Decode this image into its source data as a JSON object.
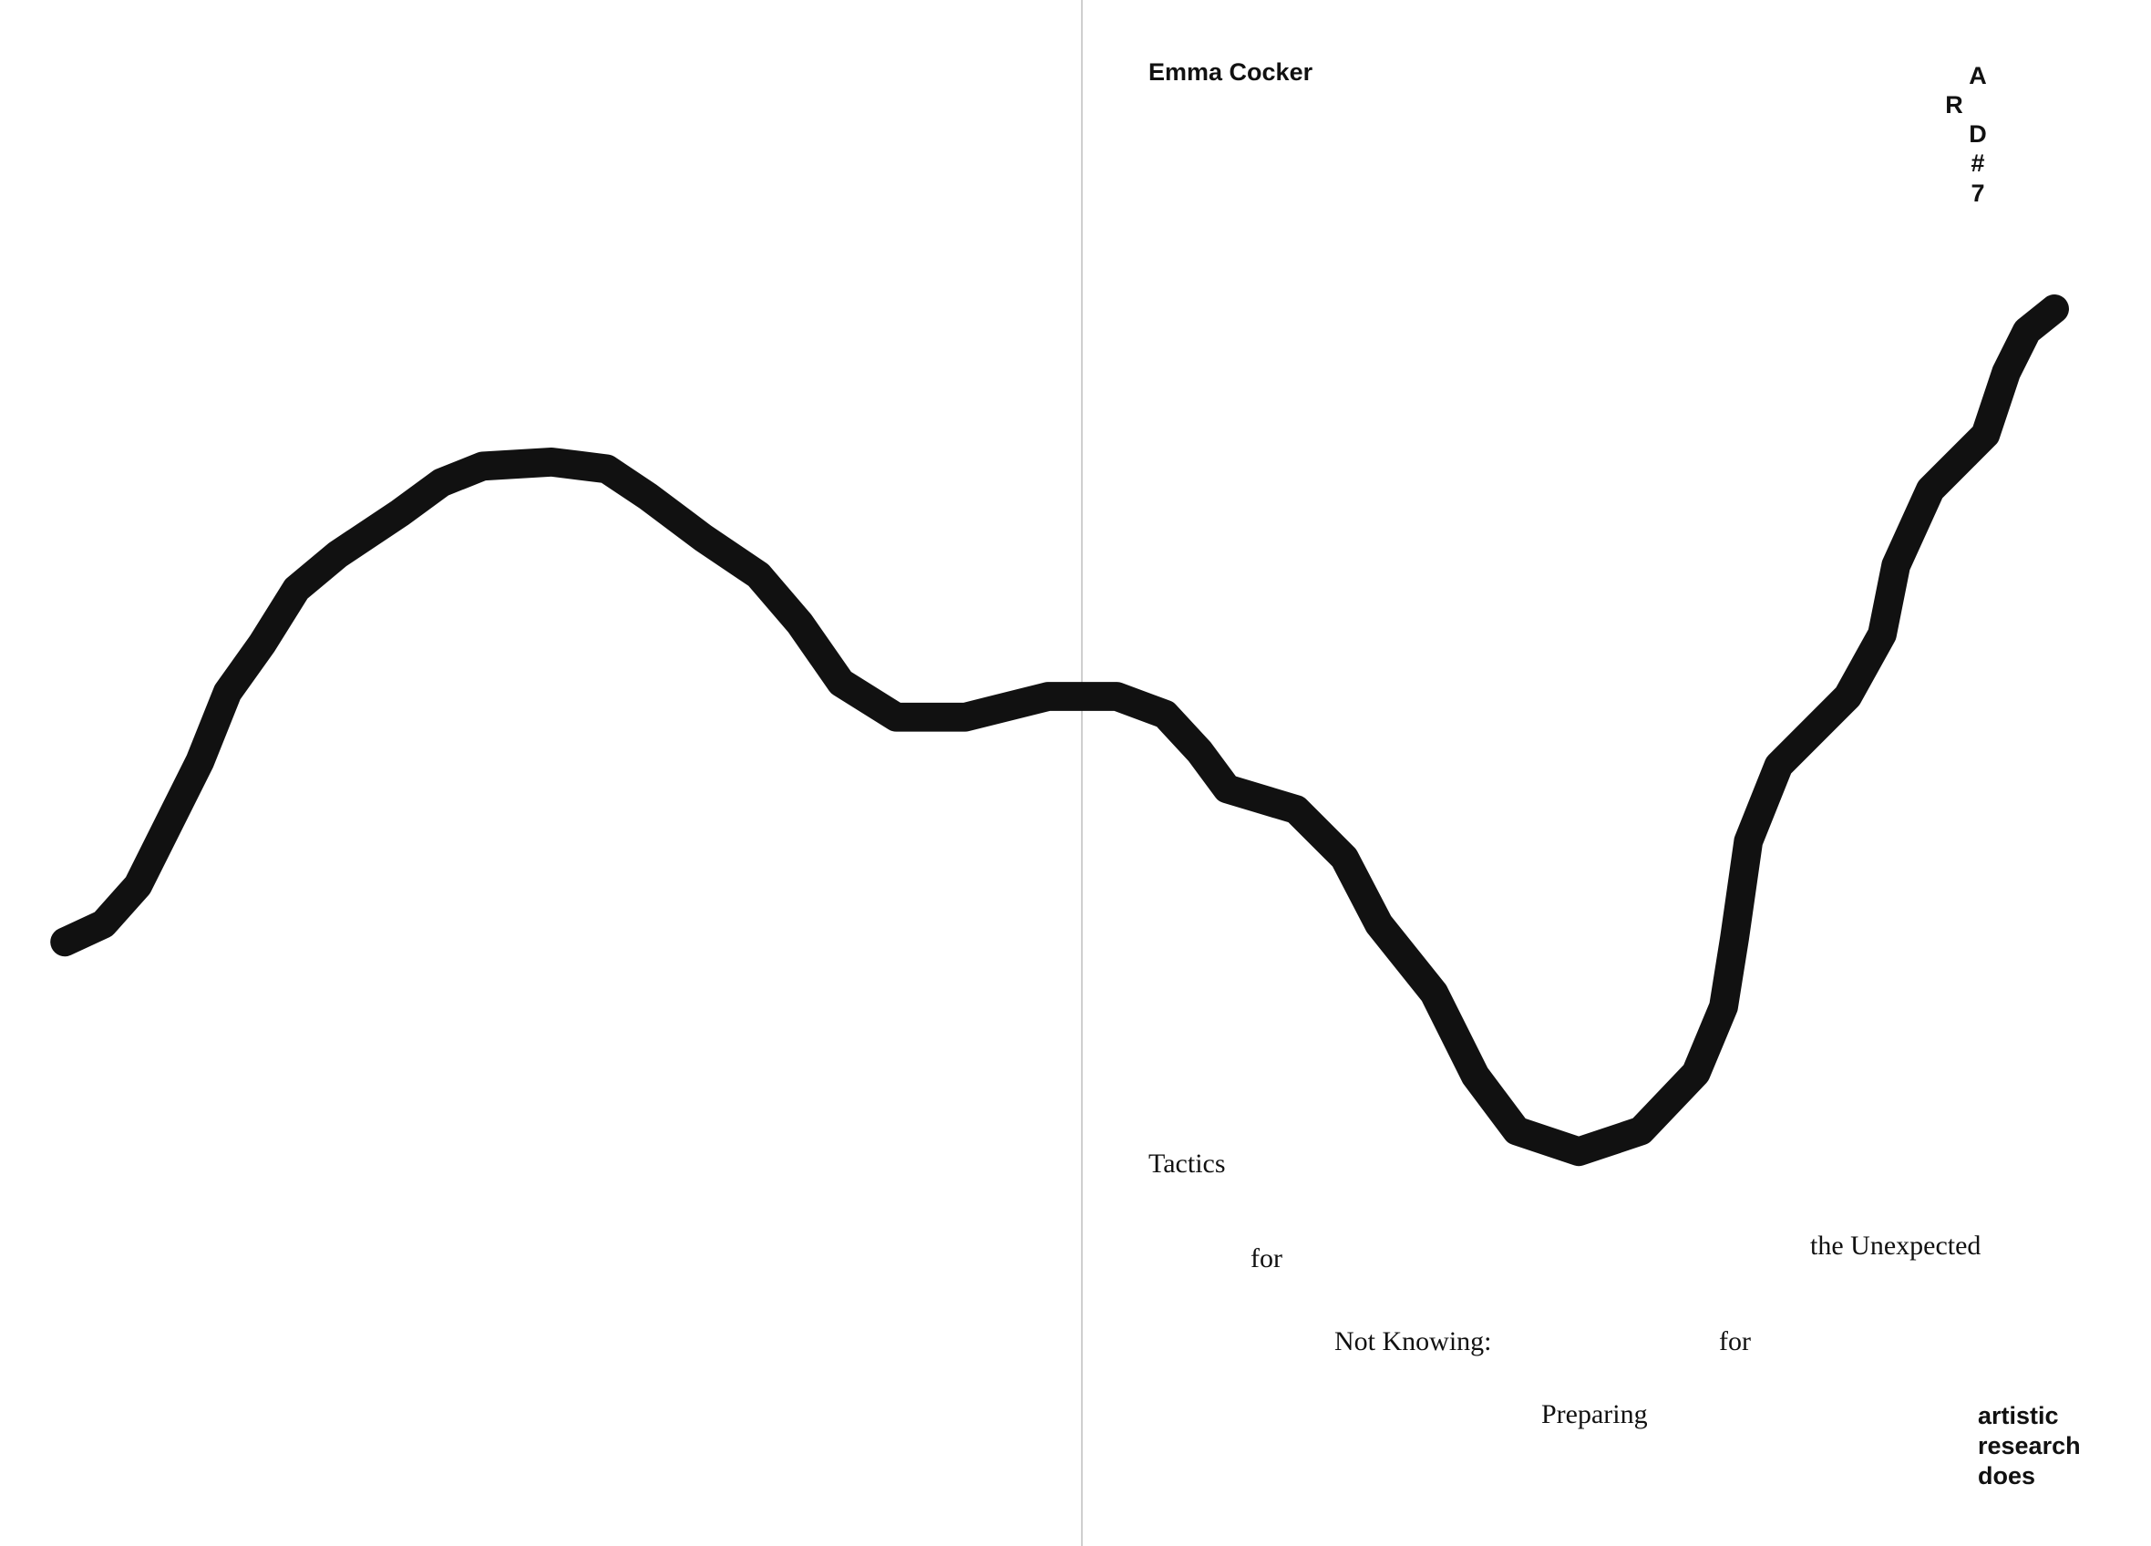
{
  "author": "Emma Cocker",
  "series_mark": [
    "A",
    "R",
    "D",
    "#",
    "7"
  ],
  "title_words": {
    "tactics": "Tactics",
    "for_1": "for",
    "the_unexpected": "the Unexpected",
    "not_knowing": "Not Knowing:",
    "for_2": "for",
    "preparing": "Preparing"
  },
  "publisher": [
    "artistic",
    "research",
    "does"
  ],
  "colors": {
    "ink": "#111111",
    "divider": "#cfcfcf",
    "background": "#ffffff"
  }
}
